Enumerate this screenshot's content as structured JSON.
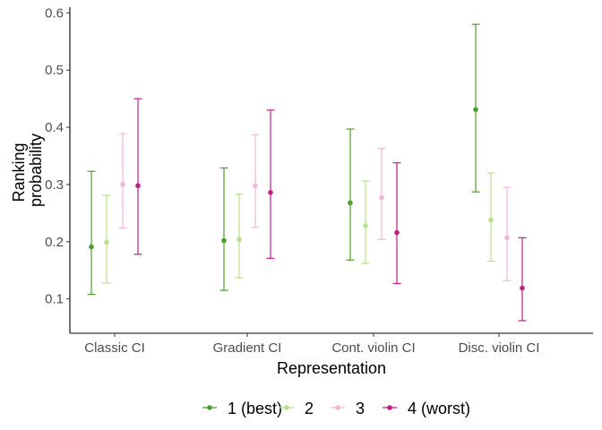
{
  "chart_data": {
    "type": "scatter",
    "subtype": "point-errorbar",
    "title": "",
    "xlabel": "Representation",
    "ylabel_lines": [
      "Ranking",
      "probability"
    ],
    "categories": [
      "Classic CI",
      "Gradient CI",
      "Cont. violin CI",
      "Disc. violin CI"
    ],
    "ylim": [
      0.04,
      0.61
    ],
    "yticks": [
      0.1,
      0.2,
      0.3,
      0.4,
      0.5,
      0.6
    ],
    "ytick_labels": [
      "0.1",
      "0.2",
      "0.3",
      "0.4",
      "0.5",
      "0.6"
    ],
    "grid": false,
    "legend_position": "bottom",
    "series": [
      {
        "name": "1 (best)",
        "color": "#4d9d2b",
        "values": [
          0.191,
          0.202,
          0.268,
          0.431
        ],
        "lower": [
          0.108,
          0.115,
          0.168,
          0.287
        ],
        "upper": [
          0.323,
          0.329,
          0.397,
          0.58
        ]
      },
      {
        "name": "2",
        "color": "#b8e186",
        "values": [
          0.199,
          0.204,
          0.228,
          0.238
        ],
        "lower": [
          0.128,
          0.137,
          0.162,
          0.166
        ],
        "upper": [
          0.281,
          0.283,
          0.306,
          0.32
        ]
      },
      {
        "name": "3",
        "color": "#f1b6da",
        "values": [
          0.3,
          0.298,
          0.277,
          0.207
        ],
        "lower": [
          0.224,
          0.225,
          0.204,
          0.132
        ],
        "upper": [
          0.389,
          0.387,
          0.363,
          0.295
        ]
      },
      {
        "name": "4 (worst)",
        "color": "#c51b8a",
        "values": [
          0.298,
          0.286,
          0.216,
          0.119
        ],
        "lower": [
          0.178,
          0.171,
          0.127,
          0.062
        ],
        "upper": [
          0.45,
          0.43,
          0.338,
          0.207
        ]
      }
    ]
  }
}
